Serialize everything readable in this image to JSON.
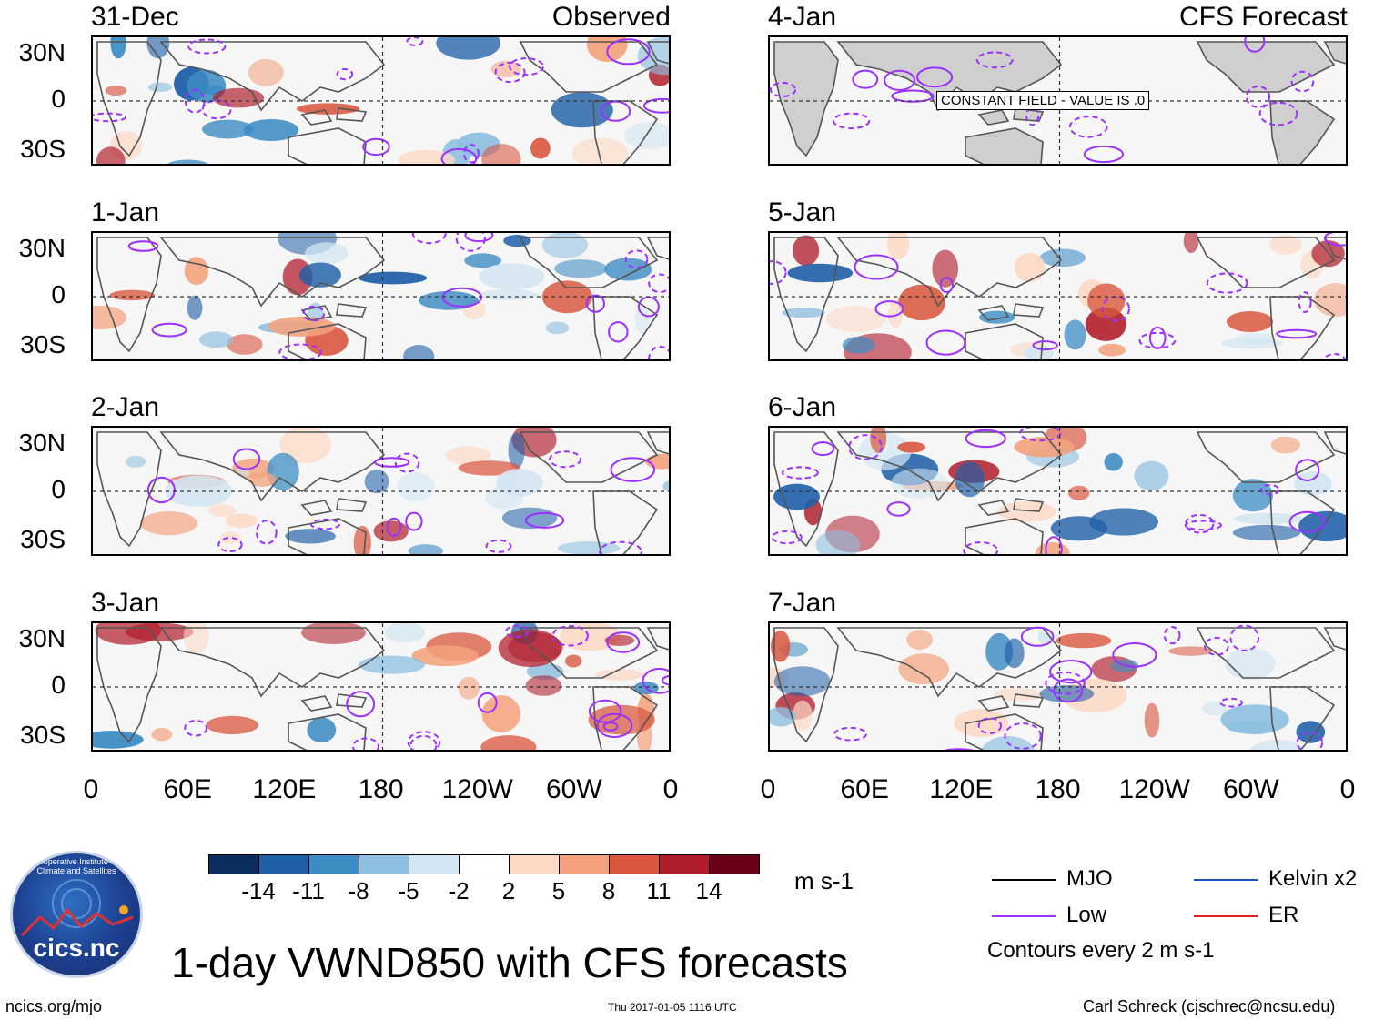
{
  "panels": [
    {
      "date": "31-Dec",
      "label": "Observed",
      "constant": ""
    },
    {
      "date": "1-Jan",
      "label": "",
      "constant": ""
    },
    {
      "date": "2-Jan",
      "label": "",
      "constant": ""
    },
    {
      "date": "3-Jan",
      "label": "",
      "constant": ""
    },
    {
      "date": "4-Jan",
      "label": "CFS Forecast",
      "constant": "CONSTANT FIELD - VALUE IS .0"
    },
    {
      "date": "5-Jan",
      "label": "",
      "constant": ""
    },
    {
      "date": "6-Jan",
      "label": "",
      "constant": ""
    },
    {
      "date": "7-Jan",
      "label": "",
      "constant": ""
    }
  ],
  "lat_labels": [
    "30N",
    "0",
    "30S"
  ],
  "lon_labels": [
    "0",
    "60E",
    "120E",
    "180",
    "120W",
    "60W",
    "0"
  ],
  "colorbar": {
    "colors": [
      "#0b2d5e",
      "#1f5fa8",
      "#3d8cc4",
      "#8ebfe0",
      "#d3e6f3",
      "#ffffff",
      "#fcd9c5",
      "#f3a27d",
      "#d9573f",
      "#b01c2b",
      "#6b0017"
    ],
    "labels": [
      "-14",
      "-11",
      "-8",
      "-5",
      "-2",
      "2",
      "5",
      "8",
      "11",
      "14"
    ],
    "units": "m s-1"
  },
  "legend": {
    "items": [
      {
        "label": "MJO",
        "color": "#000000"
      },
      {
        "label": "Low",
        "color": "#9b30ff"
      },
      {
        "label": "Kelvin x2",
        "color": "#2050c0"
      },
      {
        "label": "ER",
        "color": "#e02020"
      }
    ],
    "note": "Contours every 2 m s-1"
  },
  "title": "1-day VWND850 with CFS forecasts",
  "footer": {
    "left": "ncics.org/mjo",
    "center": "Thu 2017-01-05 1116 UTC",
    "right": "Carl Schreck (cjschrec@ncsu.edu)"
  },
  "logo": {
    "text": "cics.nc",
    "ring": "Cooperative Institute for Climate and Satellites"
  }
}
